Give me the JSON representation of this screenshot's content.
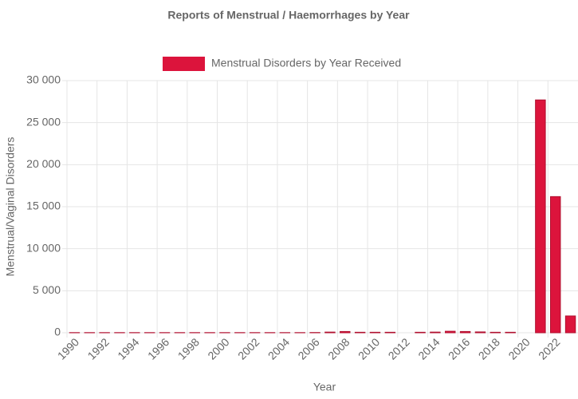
{
  "chart_data": {
    "type": "bar",
    "title": "Reports of Menstrual / Haemorrhages by Year",
    "x_label": "Year",
    "y_label": "Menstrual/Vaginal Disorders",
    "categories": [
      "1990",
      null,
      "1992",
      null,
      "1994",
      null,
      "1996",
      null,
      "1998",
      null,
      "2000",
      null,
      "2002",
      null,
      "2004",
      null,
      "2006",
      null,
      "2008",
      null,
      "2010",
      null,
      "2012",
      null,
      "2014",
      null,
      "2016",
      null,
      "2018",
      null,
      "2020",
      null,
      "2022",
      null
    ],
    "series": [
      {
        "name": "Menstrual Disorders by Year Received",
        "color": "#dc143c",
        "values": [
          20,
          20,
          20,
          20,
          20,
          20,
          20,
          20,
          20,
          20,
          20,
          20,
          20,
          20,
          20,
          20,
          30,
          80,
          150,
          60,
          60,
          60,
          0,
          60,
          80,
          180,
          150,
          100,
          60,
          60,
          0,
          27700,
          16200,
          2000
        ]
      }
    ],
    "ylim": [
      0,
      30000
    ],
    "yticks": [
      0,
      {
        "value": 5000,
        "label": "5 000"
      },
      {
        "value": 10000,
        "label": "10 000"
      },
      {
        "value": 15000,
        "label": "15 000"
      },
      {
        "value": 20000,
        "label": "20 000"
      },
      {
        "value": 25000,
        "label": "25 000"
      },
      {
        "value": 30000,
        "label": "30 000"
      }
    ],
    "grid": true,
    "legend": "top"
  }
}
